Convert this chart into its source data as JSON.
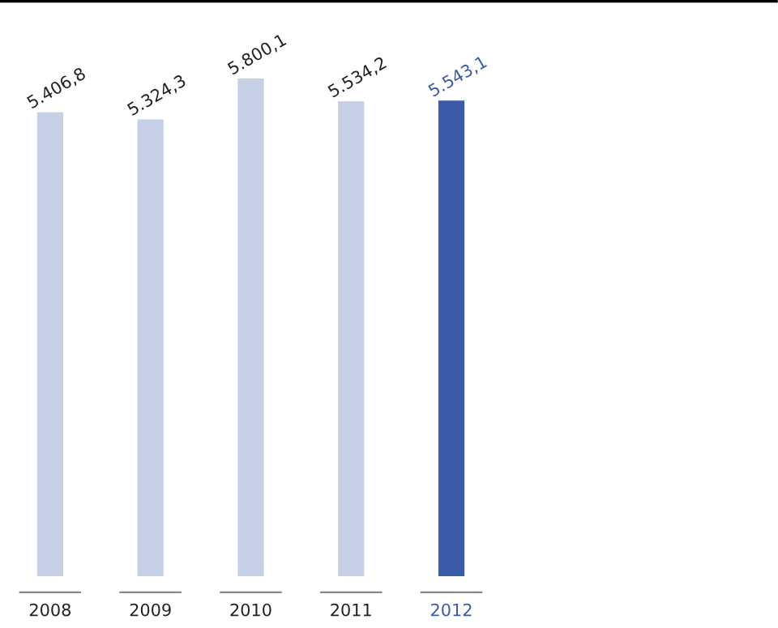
{
  "chart_data": {
    "type": "bar",
    "categories": [
      "2008",
      "2009",
      "2010",
      "2011",
      "2012"
    ],
    "values": [
      5406.8,
      5324.3,
      5800.1,
      5534.2,
      5543.1
    ],
    "value_labels": [
      "5.406,8",
      "5.324,3",
      "5.800,1",
      "5.534,2",
      "5.543,1"
    ],
    "colors": [
      "#c5cfe5",
      "#c5cfe5",
      "#c5cfe5",
      "#c5cfe5",
      "#3a5ba8"
    ],
    "ylim": [
      0,
      6700
    ],
    "tick_labels": "x",
    "grid": false,
    "legend": false
  }
}
